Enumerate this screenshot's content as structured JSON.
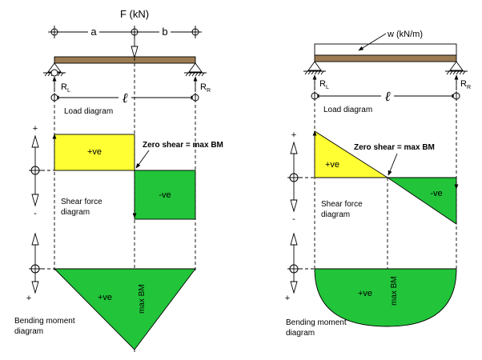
{
  "colors": {
    "beam": "#9b7b52",
    "positive_shear": "#ffff33",
    "negative_shear": "#22c43a",
    "moment": "#22c43a",
    "line": "#000000"
  },
  "left": {
    "force_label": "F (kN)",
    "dim_a": "a",
    "dim_b": "b",
    "reaction_left": "R",
    "reaction_left_sub": "L",
    "reaction_right": "R",
    "reaction_right_sub": "R",
    "span": "ℓ",
    "load_diagram": "Load diagram",
    "shear_pos": "+ve",
    "shear_neg": "-ve",
    "zero_shear": "Zero shear = max BM",
    "shear_diagram_line1": "Shear force",
    "shear_diagram_line2": "diagram",
    "plus_top": "+",
    "minus_top": "-",
    "minus_bm": "-",
    "plus_bm": "+",
    "moment_pos": "+ve",
    "max_bm": "max BM",
    "bm_line1": "Bending moment",
    "bm_line2": "diagram"
  },
  "right": {
    "udl_label": "w (kN/m)",
    "reaction_left": "R",
    "reaction_left_sub": "L",
    "reaction_right": "R",
    "reaction_right_sub": "R",
    "span": "ℓ",
    "load_diagram": "Load diagram",
    "shear_pos": "+ve",
    "shear_neg": "-ve",
    "zero_shear": "Zero shear = max BM",
    "shear_diagram_line1": "Shear force",
    "shear_diagram_line2": "diagram",
    "plus_top": "+",
    "minus_top": "-",
    "minus_bm": "-",
    "plus_bm": "+",
    "moment_pos": "+ve",
    "max_bm": "max BM",
    "bm_line1": "Bending moment",
    "bm_line2": "diagram"
  }
}
